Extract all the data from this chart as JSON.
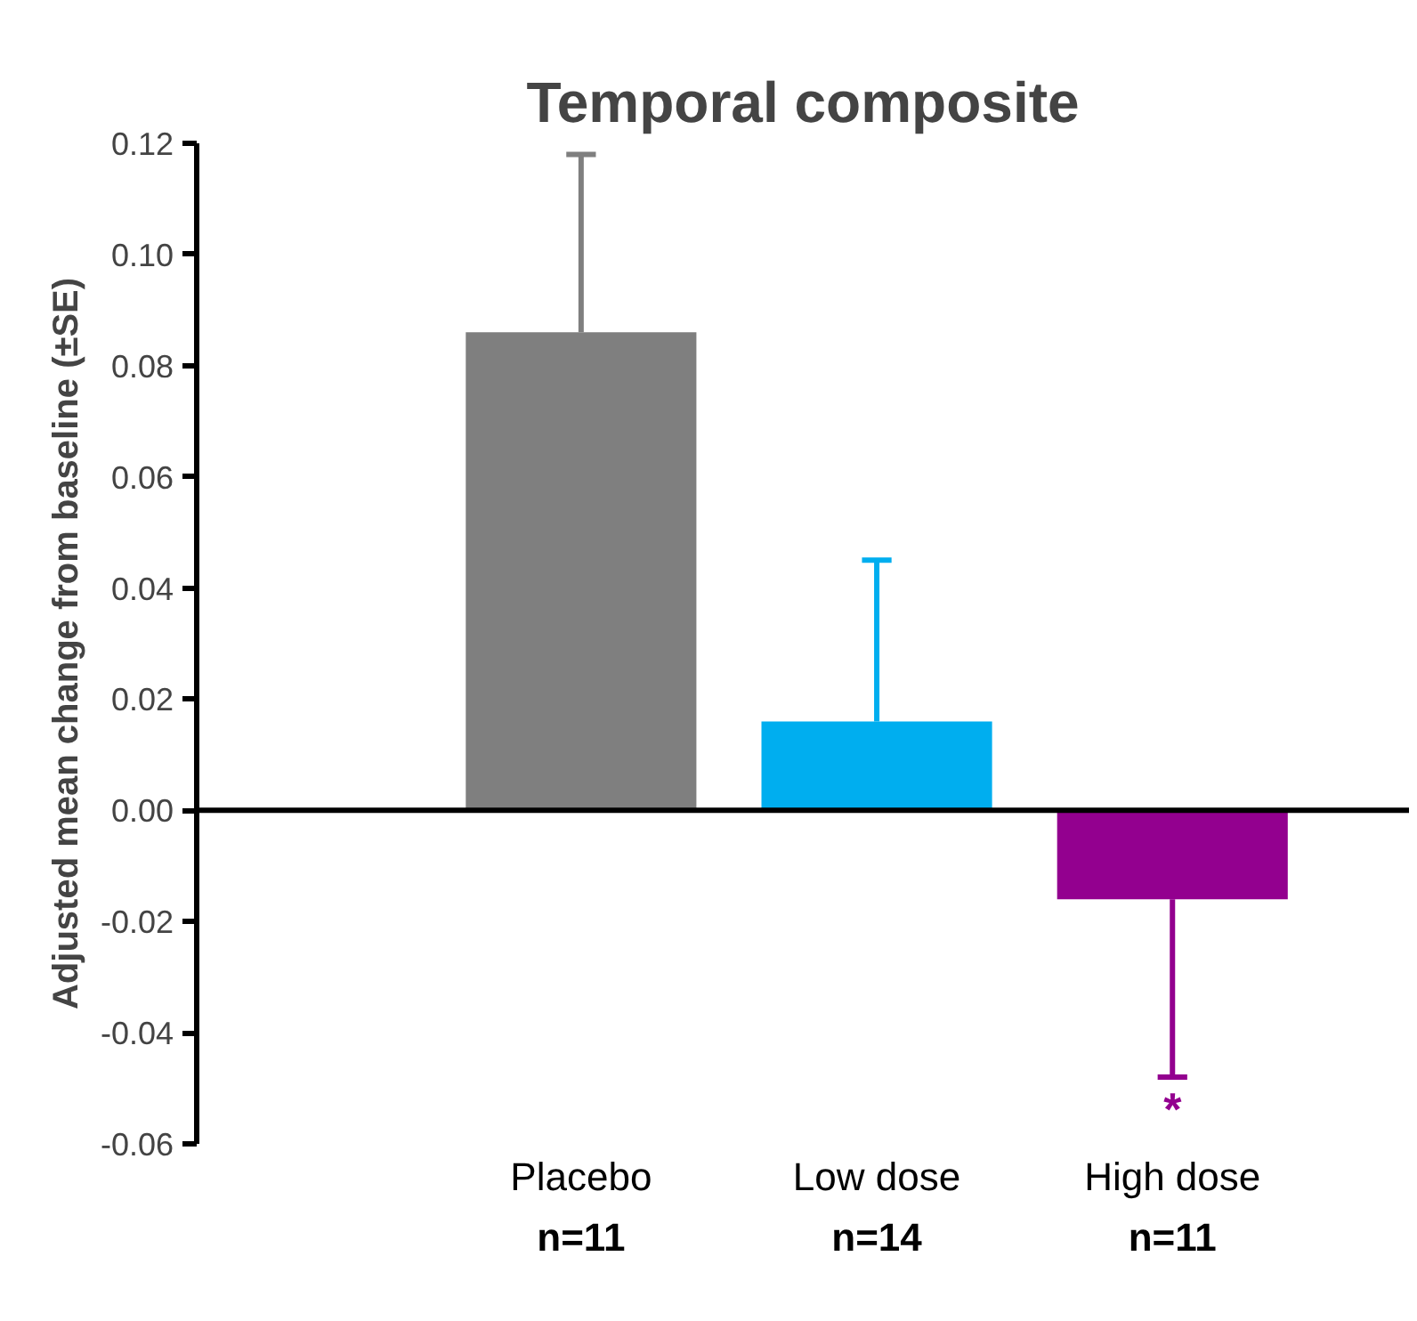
{
  "chart_data": {
    "type": "bar",
    "title": "Temporal composite",
    "ylabel": "Adjusted mean change from baseline (±SE)",
    "categories": [
      "Placebo",
      "Low dose",
      "High dose"
    ],
    "colors": [
      "#7f7f7f",
      "#00aeef",
      "#93008f"
    ],
    "values": [
      0.086,
      0.016,
      -0.016
    ],
    "errors": [
      [
        0.086,
        0.118
      ],
      [
        0.016,
        0.045
      ],
      [
        -0.048,
        -0.016
      ]
    ],
    "ylim": [
      -0.06,
      0.12
    ],
    "yticks": [
      {
        "value": -0.06,
        "label": "-0.06"
      },
      {
        "value": -0.04,
        "label": "-0.04"
      },
      {
        "value": -0.02,
        "label": "-0.02"
      },
      {
        "value": 0,
        "label": "0.00"
      },
      {
        "value": 0.02,
        "label": "0.02"
      },
      {
        "value": 0.04,
        "label": "0.04"
      },
      {
        "value": 0.06,
        "label": "0.06"
      },
      {
        "value": 0.08,
        "label": "0.08"
      },
      {
        "value": 0.1,
        "label": "0.10"
      },
      {
        "value": 0.12,
        "label": "0.12"
      }
    ],
    "annotations": [
      "n=11",
      "n=14",
      "n=11",
      "*"
    ],
    "ref_lines": [
      {
        "axis": "y",
        "value": 0,
        "color": "#000000"
      }
    ]
  }
}
